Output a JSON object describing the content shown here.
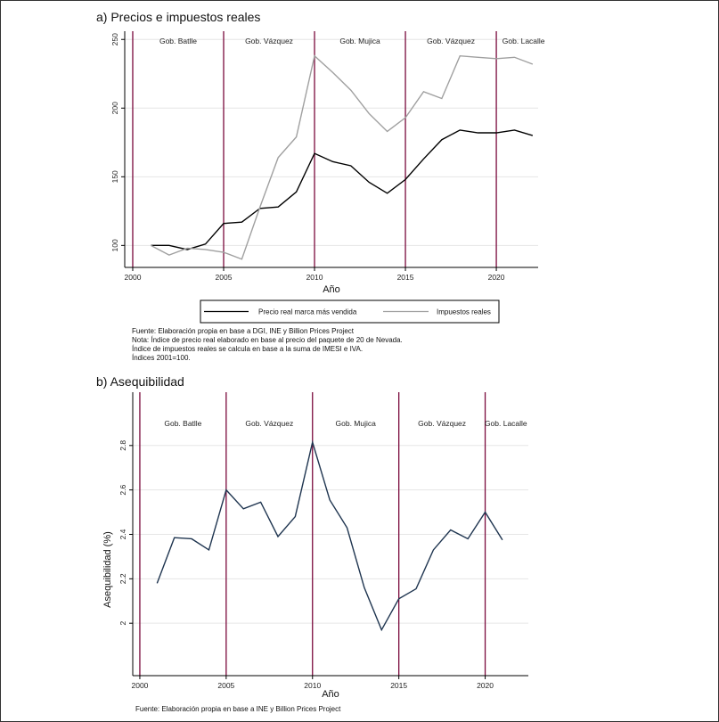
{
  "chart_data": [
    {
      "type": "line",
      "title": "a) Precios e impuestos reales",
      "xlabel": "Año",
      "ylabel": "",
      "xlim": [
        1999.56,
        2022.3
      ],
      "ylim": [
        84,
        256
      ],
      "xticks": [
        2000,
        2005,
        2010,
        2015,
        2020
      ],
      "yticks": [
        100,
        150,
        200,
        250
      ],
      "grid": true,
      "x": [
        2001,
        2002,
        2003,
        2004,
        2005,
        2006,
        2007,
        2008,
        2009,
        2010,
        2011,
        2012,
        2013,
        2014,
        2015,
        2016,
        2017,
        2018,
        2019,
        2020,
        2021,
        2022
      ],
      "series": [
        {
          "name": "Precio real marca más vendida",
          "color": "#000000",
          "values": [
            100,
            100,
            97,
            101,
            116,
            117,
            127,
            128,
            139,
            167,
            161,
            158,
            146,
            138,
            148,
            163,
            177,
            184,
            182,
            182,
            184,
            180
          ]
        },
        {
          "name": "Impuestos reales",
          "color": "#a0a0a0",
          "values": [
            100,
            93,
            98,
            97,
            95,
            90,
            128,
            164,
            179,
            238,
            226,
            213,
            196,
            183,
            193,
            212,
            207,
            238,
            237,
            236,
            237,
            232
          ]
        }
      ],
      "vlines": [
        2000,
        2005,
        2010,
        2015,
        2020
      ],
      "vline_color": "#7a0a3c",
      "annotations": [
        {
          "text": "Gob. Batlle",
          "x": 2002.5
        },
        {
          "text": "Gob. Vázquez",
          "x": 2007.5
        },
        {
          "text": "Gob. Mujica",
          "x": 2012.5
        },
        {
          "text": "Gob. Vázquez",
          "x": 2017.5
        },
        {
          "text": "Gob. Lacalle",
          "x": 2021.5
        }
      ],
      "legend": "bottom",
      "notes": [
        "Fuente: Elaboración propia en base a DGI, INE y Billion Prices Project",
        "Nota: Índice de precio real elaborado en base al precio del paquete de 20 de Nevada.",
        "Índice de impuestos reales se calcula en base a la suma de IMESI e IVA.",
        "Índices 2001=100."
      ]
    },
    {
      "type": "line",
      "title": "b) Asequibilidad",
      "xlabel": "Año",
      "ylabel": "Asequibilidad (%)",
      "xlim": [
        1999.59,
        2022.5
      ],
      "ylim": [
        1.764,
        3.04
      ],
      "xticks": [
        2000,
        2005,
        2010,
        2015,
        2020
      ],
      "yticks": [
        2,
        2.2,
        2.4,
        2.6,
        2.8
      ],
      "grid": true,
      "x": [
        2001,
        2002,
        2003,
        2004,
        2005,
        2006,
        2007,
        2008,
        2009,
        2010,
        2011,
        2012,
        2013,
        2014,
        2015,
        2016,
        2017,
        2018,
        2019,
        2020,
        2021
      ],
      "series": [
        {
          "name": "Asequibilidad",
          "color": "#1f3550",
          "values": [
            2.18,
            2.385,
            2.38,
            2.33,
            2.6,
            2.515,
            2.545,
            2.39,
            2.48,
            2.815,
            2.555,
            2.43,
            2.16,
            1.97,
            2.11,
            2.155,
            2.33,
            2.42,
            2.38,
            2.5,
            2.375
          ]
        }
      ],
      "vlines": [
        2000,
        2005,
        2010,
        2015,
        2020
      ],
      "vline_color": "#7a0a3c",
      "annotations": [
        {
          "text": "Gob. Batlle",
          "x": 2002.5
        },
        {
          "text": "Gob. Vázquez",
          "x": 2007.5
        },
        {
          "text": "Gob. Mujica",
          "x": 2012.5
        },
        {
          "text": "Gob. Vázquez",
          "x": 2017.5
        },
        {
          "text": "Gob. Lacalle",
          "x": 2021.2
        }
      ],
      "notes": [
        "Fuente: Elaboración propia en base a INE y Billion Prices Project"
      ]
    }
  ]
}
